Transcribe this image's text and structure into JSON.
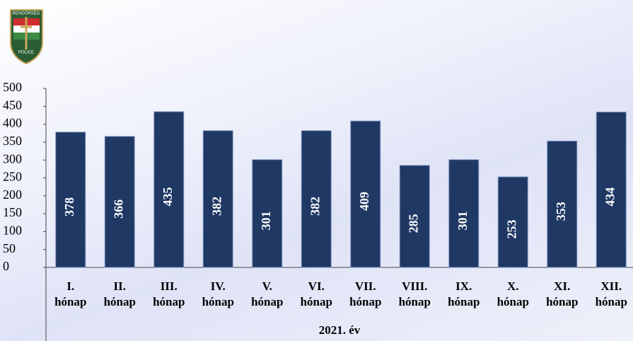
{
  "logo": {
    "top": "RENDŐRSÉG",
    "bottom": "POLICE"
  },
  "chart_data": {
    "type": "bar",
    "categories": [
      "I. hónap",
      "II. hónap",
      "III. hónap",
      "IV. hónap",
      "V. hónap",
      "VI. hónap",
      "VII. hónap",
      "VIII. hónap",
      "IX. hónap",
      "X. hónap",
      "XI. hónap",
      "XII. hónap"
    ],
    "values": [
      378,
      366,
      435,
      382,
      301,
      382,
      409,
      285,
      301,
      253,
      353,
      434
    ],
    "color": "#1f3864",
    "x_label": "2021. év",
    "ylim": [
      0,
      500
    ],
    "yticks": [
      0,
      50,
      100,
      150,
      200,
      250,
      300,
      350,
      400,
      450,
      500
    ],
    "grid": false
  }
}
